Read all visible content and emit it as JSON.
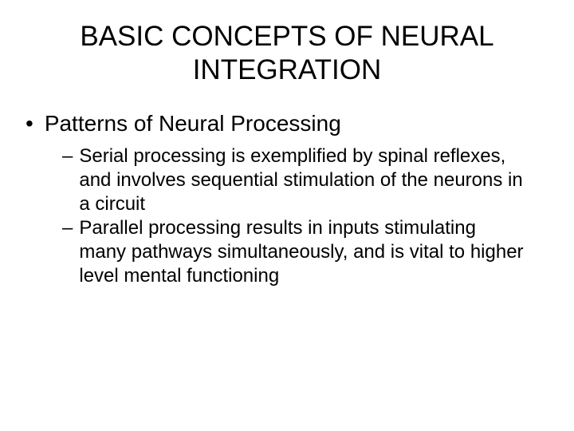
{
  "slide": {
    "title": "BASIC CONCEPTS OF NEURAL INTEGRATION",
    "background_color": "#ffffff",
    "text_color": "#000000",
    "title_fontsize": 35,
    "main_bullet_fontsize": 28,
    "sub_bullet_fontsize": 24,
    "font_family": "Arial",
    "main_bullet": {
      "marker": "•",
      "text": "Patterns of Neural Processing"
    },
    "sub_bullets": [
      {
        "marker": "–",
        "text": "Serial processing is exemplified by spinal reflexes, and involves sequential stimulation of the neurons in a circuit"
      },
      {
        "marker": "–",
        "text": "Parallel processing results in inputs stimulating many pathways simultaneously, and is vital to higher level mental functioning"
      }
    ]
  }
}
